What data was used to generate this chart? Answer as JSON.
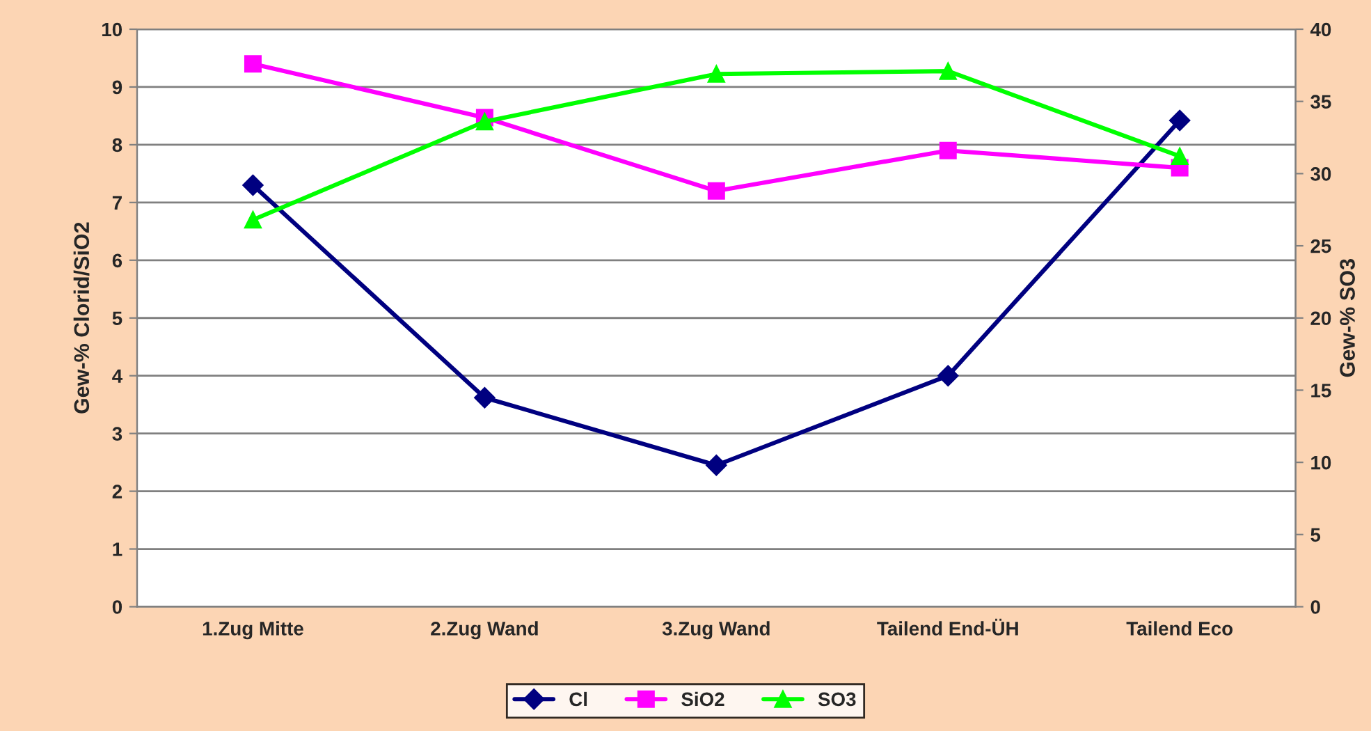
{
  "chart_data": {
    "type": "line",
    "categories": [
      "1.Zug Mitte",
      "2.Zug Wand",
      "3.Zug Wand",
      "Tailend End-ÜH",
      "Tailend Eco"
    ],
    "ylabel": "Gew-% Clorid/SiO2",
    "y2label": "Gew-% SO3",
    "ylim": [
      0,
      10
    ],
    "yticks": [
      0,
      1,
      2,
      3,
      4,
      5,
      6,
      7,
      8,
      9,
      10
    ],
    "y2lim": [
      0,
      40
    ],
    "y2ticks": [
      0,
      5,
      10,
      15,
      20,
      25,
      30,
      35,
      40
    ],
    "grid": "y",
    "legend": "bottom",
    "series": [
      {
        "name": "Cl",
        "color": "#000080",
        "marker": "diamond",
        "values": [
          7.3,
          3.62,
          2.45,
          4.0,
          8.42
        ]
      },
      {
        "name": "SiO2",
        "color": "#ff00ff",
        "marker": "square",
        "values": [
          9.4,
          8.47,
          7.2,
          7.9,
          7.6
        ]
      },
      {
        "name": "SO3",
        "color": "#00ff00",
        "marker": "triangle",
        "axis": "y2",
        "values": [
          26.8,
          33.6,
          36.9,
          37.1,
          31.2
        ]
      }
    ]
  }
}
